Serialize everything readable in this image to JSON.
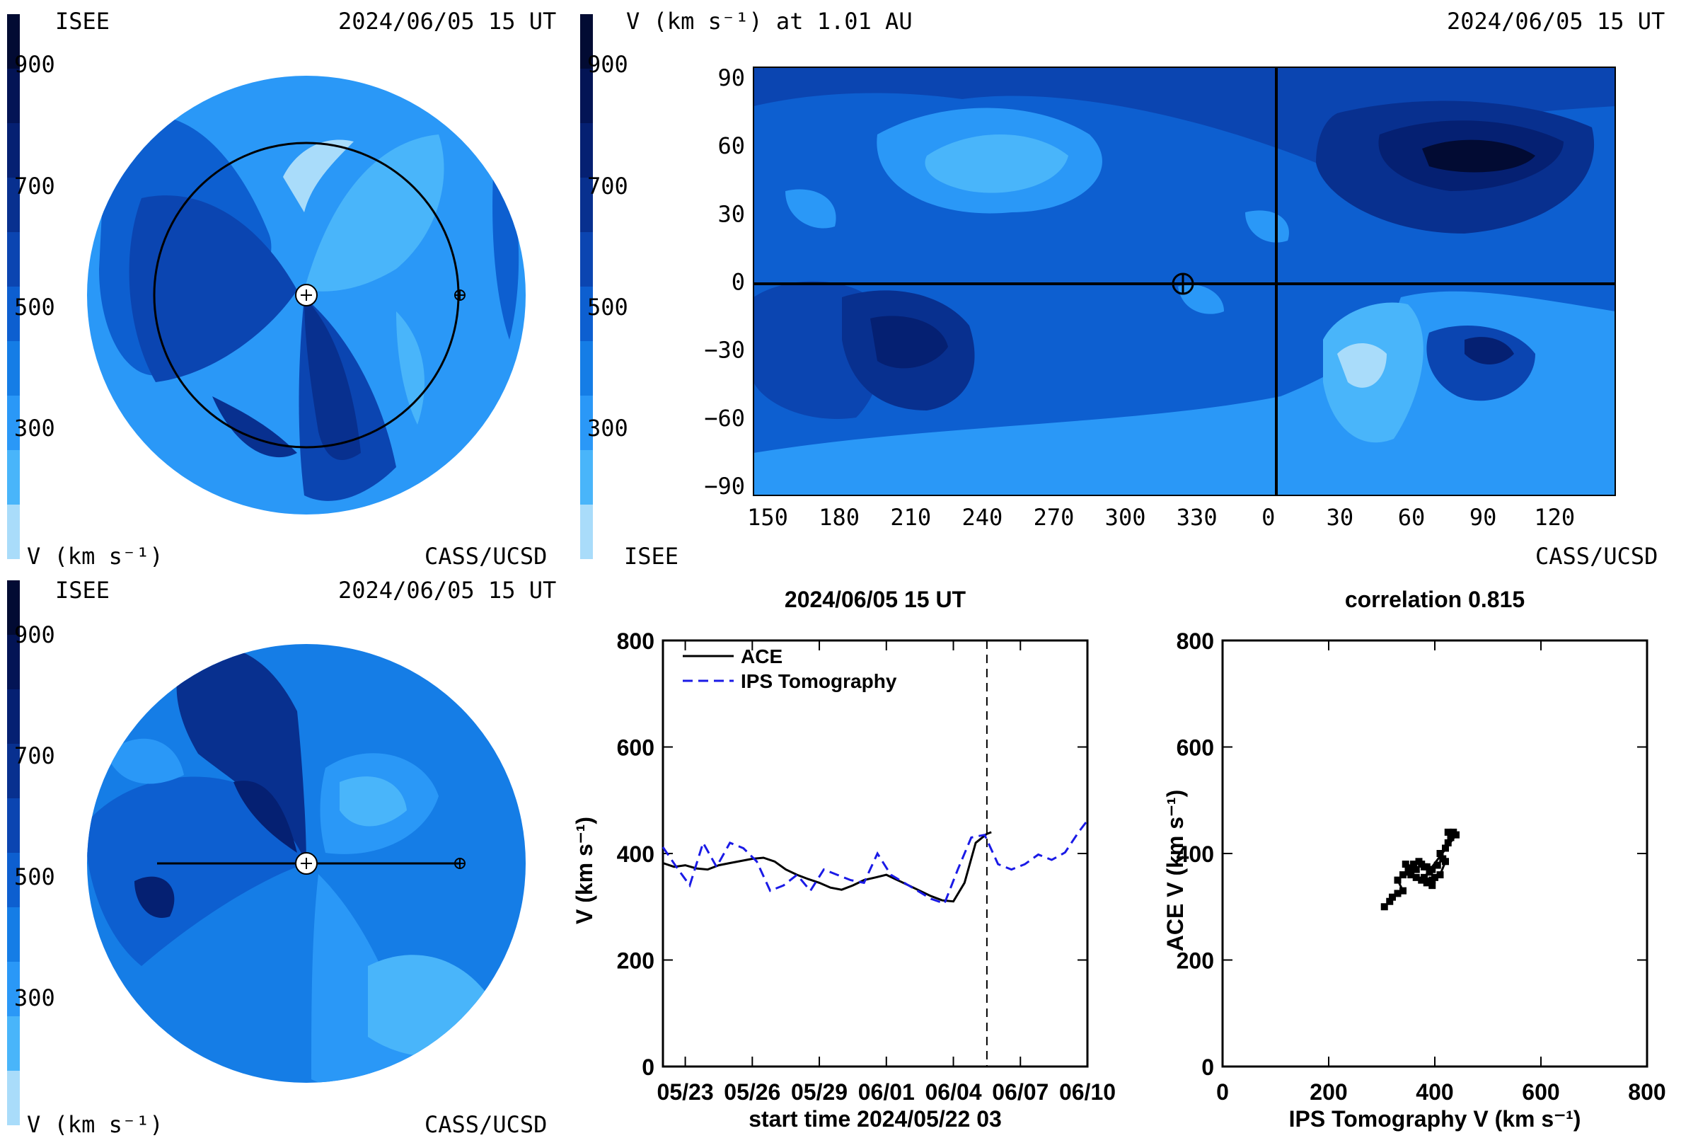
{
  "colors": {
    "scale": [
      "#a9dcfa",
      "#49b5fa",
      "#2a98f7",
      "#157de6",
      "#0d5fd0",
      "#0b45b1",
      "#08308f",
      "#052072",
      "#031455",
      "#020b33"
    ]
  },
  "panels": {
    "top_left": {
      "org": "ISEE",
      "time": "2024/06/05 15 UT",
      "unit": "V (km s⁻¹)",
      "credit": "CASS/UCSD",
      "cbar_ticks": [
        "900",
        "700",
        "500",
        "300"
      ]
    },
    "bottom_left": {
      "org": "ISEE",
      "time": "2024/06/05 15 UT",
      "unit": "V (km s⁻¹)",
      "credit": "CASS/UCSD",
      "cbar_ticks": [
        "900",
        "700",
        "500",
        "300"
      ]
    },
    "top_right": {
      "title": "V (km s⁻¹) at 1.01 AU",
      "time": "2024/06/05 15 UT",
      "org": "ISEE",
      "credit": "CASS/UCSD",
      "cbar_ticks": [
        "900",
        "700",
        "500",
        "300"
      ]
    }
  },
  "chart_data": [
    {
      "type": "heatmap",
      "title": "V (km s⁻¹) at 1.01 AU",
      "subtitle": "2024/06/05 15 UT",
      "x_tick_labels": [
        "150",
        "180",
        "210",
        "240",
        "270",
        "300",
        "330",
        "0",
        "30",
        "60",
        "90",
        "120"
      ],
      "y_tick_labels": [
        "90",
        "60",
        "30",
        "0",
        "−30",
        "−60",
        "−90"
      ],
      "ylim": [
        -90,
        90
      ],
      "colorbar_ticks": [
        900,
        700,
        500,
        300
      ],
      "earth_longitude": 321
    },
    {
      "type": "line",
      "title": "2024/06/05 15 UT",
      "xlabel": "start time 2024/05/22 03",
      "ylabel": "V (km s⁻¹)",
      "ylim": [
        0,
        800
      ],
      "yticks": [
        "0",
        "200",
        "400",
        "600",
        "800"
      ],
      "xticks": [
        "05/23",
        "05/26",
        "05/29",
        "06/01",
        "06/04",
        "06/07",
        "06/10"
      ],
      "x_range_days": [
        0,
        19
      ],
      "now_day": 14.5,
      "series": [
        {
          "name": "ACE",
          "color": "#000000",
          "dash": false,
          "points": [
            [
              0,
              382
            ],
            [
              0.5,
              375
            ],
            [
              1,
              378
            ],
            [
              1.5,
              372
            ],
            [
              2,
              370
            ],
            [
              2.5,
              378
            ],
            [
              3,
              382
            ],
            [
              3.5,
              386
            ],
            [
              4,
              390
            ],
            [
              4.5,
              392
            ],
            [
              5,
              385
            ],
            [
              5.5,
              370
            ],
            [
              6,
              360
            ],
            [
              6.5,
              352
            ],
            [
              7,
              345
            ],
            [
              7.5,
              336
            ],
            [
              8,
              332
            ],
            [
              8.5,
              340
            ],
            [
              9,
              350
            ],
            [
              9.5,
              355
            ],
            [
              10,
              360
            ],
            [
              10.5,
              350
            ],
            [
              11,
              340
            ],
            [
              11.5,
              330
            ],
            [
              12,
              320
            ],
            [
              12.5,
              312
            ],
            [
              13,
              310
            ],
            [
              13.5,
              345
            ],
            [
              14,
              420
            ],
            [
              14.5,
              437
            ],
            [
              14.7,
              440
            ]
          ]
        },
        {
          "name": "IPS Tomography",
          "color": "#1a1ae6",
          "dash": true,
          "points": [
            [
              0,
              412
            ],
            [
              0.6,
              375
            ],
            [
              1.2,
              340
            ],
            [
              1.8,
              420
            ],
            [
              2.4,
              375
            ],
            [
              3,
              420
            ],
            [
              3.6,
              410
            ],
            [
              4.2,
              385
            ],
            [
              4.8,
              330
            ],
            [
              5.4,
              340
            ],
            [
              6,
              360
            ],
            [
              6.6,
              330
            ],
            [
              7.2,
              370
            ],
            [
              7.8,
              360
            ],
            [
              8.4,
              350
            ],
            [
              9,
              345
            ],
            [
              9.6,
              400
            ],
            [
              10.2,
              360
            ],
            [
              10.8,
              345
            ],
            [
              11.4,
              330
            ],
            [
              12,
              315
            ],
            [
              12.6,
              306
            ],
            [
              13.2,
              370
            ],
            [
              13.8,
              430
            ],
            [
              14.4,
              435
            ],
            [
              15,
              380
            ],
            [
              15.6,
              370
            ],
            [
              16.2,
              380
            ],
            [
              16.8,
              398
            ],
            [
              17.4,
              388
            ],
            [
              18,
              402
            ],
            [
              18.6,
              440
            ],
            [
              19,
              462
            ]
          ]
        }
      ],
      "legend": "top-left"
    },
    {
      "type": "scatter",
      "title": "correlation 0.815",
      "xlabel": "IPS Tomography V (km s⁻¹)",
      "ylabel": "ACE V (km s⁻¹)",
      "xlim": [
        0,
        800
      ],
      "ylim": [
        0,
        800
      ],
      "xticks": [
        "0",
        "200",
        "400",
        "600",
        "800"
      ],
      "yticks": [
        "0",
        "200",
        "400",
        "600",
        "800"
      ],
      "points": [
        [
          305,
          300
        ],
        [
          315,
          310
        ],
        [
          320,
          318
        ],
        [
          330,
          325
        ],
        [
          340,
          330
        ],
        [
          330,
          350
        ],
        [
          340,
          360
        ],
        [
          350,
          370
        ],
        [
          360,
          375
        ],
        [
          345,
          380
        ],
        [
          355,
          360
        ],
        [
          365,
          355
        ],
        [
          375,
          350
        ],
        [
          385,
          345
        ],
        [
          395,
          340
        ],
        [
          400,
          355
        ],
        [
          390,
          365
        ],
        [
          380,
          375
        ],
        [
          370,
          385
        ],
        [
          360,
          380
        ],
        [
          350,
          365
        ],
        [
          365,
          370
        ],
        [
          375,
          380
        ],
        [
          385,
          375
        ],
        [
          395,
          370
        ],
        [
          405,
          378
        ],
        [
          415,
          390
        ],
        [
          410,
          400
        ],
        [
          420,
          410
        ],
        [
          425,
          420
        ],
        [
          430,
          430
        ],
        [
          435,
          440
        ],
        [
          425,
          440
        ],
        [
          440,
          435
        ],
        [
          380,
          355
        ],
        [
          395,
          350
        ],
        [
          410,
          360
        ],
        [
          420,
          385
        ]
      ]
    }
  ]
}
